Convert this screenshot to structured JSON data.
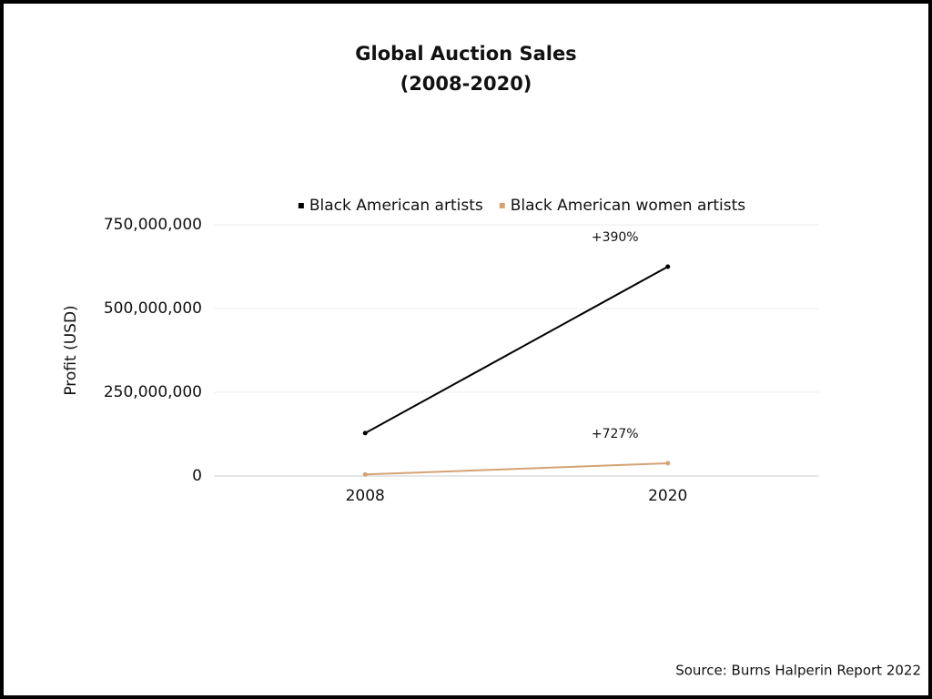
{
  "chart_data": {
    "type": "line",
    "title": "Global Auction Sales",
    "subtitle": "(2008-2020)",
    "y_label": "Profit (USD)",
    "source": "Source: Burns Halperin Report 2022",
    "categories": [
      "2008",
      "2020"
    ],
    "series": [
      {
        "name": "Black American artists",
        "color": "#000000",
        "values": [
          128000000,
          625000000
        ],
        "annotation": "+390%"
      },
      {
        "name": "Black American women artists",
        "color": "#d4a373",
        "values": [
          4600000,
          38000000
        ],
        "annotation": "+727%"
      }
    ],
    "ylim": [
      0,
      750000000
    ],
    "yticks": [
      0,
      {
        "value": 250000000,
        "label": "250,000,000"
      },
      {
        "value": 500000000,
        "label": "500,000,000"
      },
      {
        "value": 750000000,
        "label": "750,000,000"
      }
    ],
    "grid": true,
    "legend": "top"
  }
}
